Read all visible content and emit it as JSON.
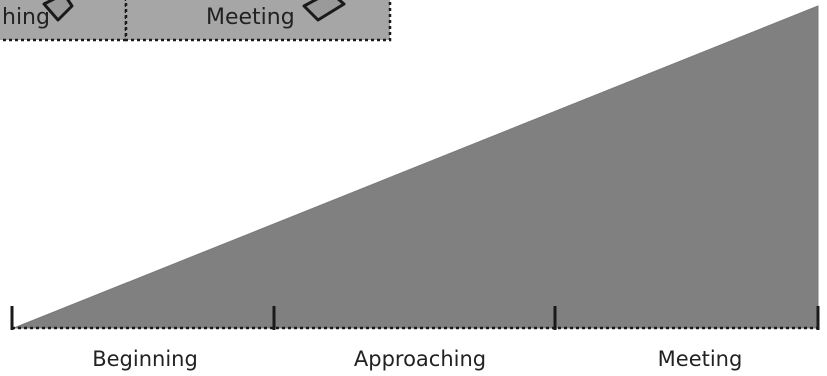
{
  "top_boxes": [
    {
      "label": "hing"
    },
    {
      "label": "Meeting"
    }
  ],
  "scale": {
    "labels": [
      "Beginning",
      "Approaching",
      "Meeting"
    ]
  },
  "colors": {
    "fill": "#808080",
    "stroke": "#1a1a1a",
    "box_fill": "#a6a6a6",
    "arrow_fill": "#9a9a9a",
    "text": "#222222"
  }
}
